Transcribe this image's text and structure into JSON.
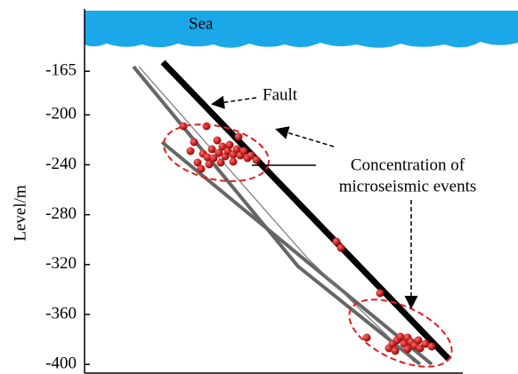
{
  "chart_data": {
    "type": "section",
    "ylabel": "Level/m",
    "ylim": [
      -407,
      -115
    ],
    "yticks": [
      -165,
      -200,
      -240,
      -280,
      -320,
      -360,
      -400
    ],
    "annotations": {
      "sea": "Sea",
      "fault": "Fault",
      "concentration": [
        "Concentration of",
        "microseismic events"
      ]
    }
  }
}
